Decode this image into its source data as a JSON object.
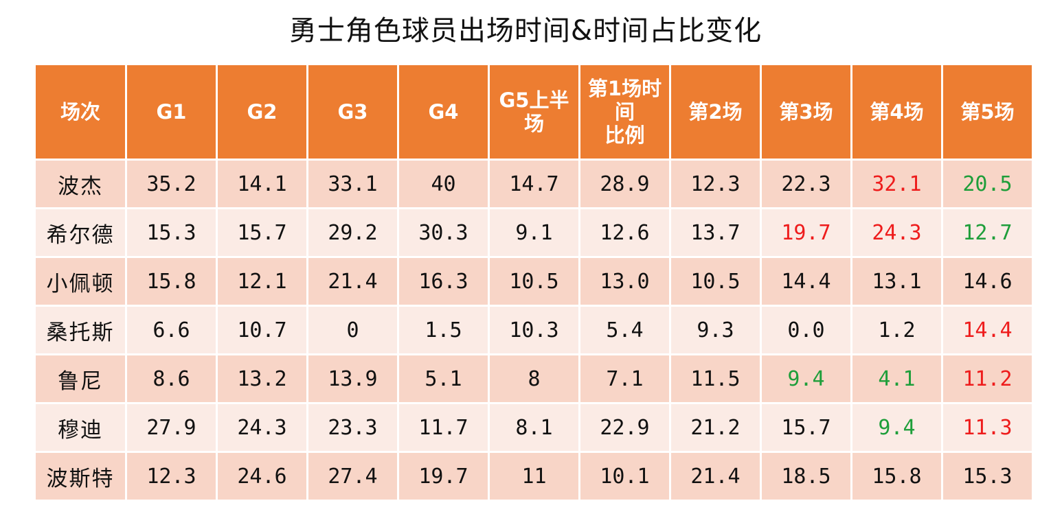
{
  "chart_data": {
    "type": "table",
    "title": "勇士角色球员出场时间&时间占比变化",
    "columns": [
      "场次",
      "G1",
      "G2",
      "G3",
      "G4",
      "G5上半\n场",
      "第1场时\n间\n比例",
      "第2场",
      "第3场",
      "第4场",
      "第5场"
    ],
    "rows": [
      {
        "name": "波杰",
        "cells": [
          {
            "v": "35.2"
          },
          {
            "v": "14.1"
          },
          {
            "v": "33.1"
          },
          {
            "v": "40"
          },
          {
            "v": "14.7"
          },
          {
            "v": "28.9"
          },
          {
            "v": "12.3"
          },
          {
            "v": "22.3"
          },
          {
            "v": "32.1",
            "color": "red"
          },
          {
            "v": "20.5",
            "color": "green"
          }
        ]
      },
      {
        "name": "希尔德",
        "cells": [
          {
            "v": "15.3"
          },
          {
            "v": "15.7"
          },
          {
            "v": "29.2"
          },
          {
            "v": "30.3"
          },
          {
            "v": "9.1"
          },
          {
            "v": "12.6"
          },
          {
            "v": "13.7"
          },
          {
            "v": "19.7",
            "color": "red"
          },
          {
            "v": "24.3",
            "color": "red"
          },
          {
            "v": "12.7",
            "color": "green"
          }
        ]
      },
      {
        "name": "小佩顿",
        "cells": [
          {
            "v": "15.8"
          },
          {
            "v": "12.1"
          },
          {
            "v": "21.4"
          },
          {
            "v": "16.3"
          },
          {
            "v": "10.5"
          },
          {
            "v": "13.0"
          },
          {
            "v": "10.5"
          },
          {
            "v": "14.4"
          },
          {
            "v": "13.1"
          },
          {
            "v": "14.6"
          }
        ]
      },
      {
        "name": "桑托斯",
        "cells": [
          {
            "v": "6.6"
          },
          {
            "v": "10.7"
          },
          {
            "v": "0"
          },
          {
            "v": "1.5"
          },
          {
            "v": "10.3"
          },
          {
            "v": "5.4"
          },
          {
            "v": "9.3"
          },
          {
            "v": "0.0"
          },
          {
            "v": "1.2"
          },
          {
            "v": "14.4",
            "color": "red"
          }
        ]
      },
      {
        "name": "鲁尼",
        "cells": [
          {
            "v": "8.6"
          },
          {
            "v": "13.2"
          },
          {
            "v": "13.9"
          },
          {
            "v": "5.1"
          },
          {
            "v": "8"
          },
          {
            "v": "7.1"
          },
          {
            "v": "11.5"
          },
          {
            "v": "9.4",
            "color": "green"
          },
          {
            "v": "4.1",
            "color": "green"
          },
          {
            "v": "11.2",
            "color": "red"
          }
        ]
      },
      {
        "name": "穆迪",
        "cells": [
          {
            "v": "27.9"
          },
          {
            "v": "24.3"
          },
          {
            "v": "23.3"
          },
          {
            "v": "11.7"
          },
          {
            "v": "8.1"
          },
          {
            "v": "22.9"
          },
          {
            "v": "21.2"
          },
          {
            "v": "15.7"
          },
          {
            "v": "9.4",
            "color": "green"
          },
          {
            "v": "11.3",
            "color": "red"
          }
        ]
      },
      {
        "name": "波斯特",
        "cells": [
          {
            "v": "12.3"
          },
          {
            "v": "24.6"
          },
          {
            "v": "27.4"
          },
          {
            "v": "19.7"
          },
          {
            "v": "11"
          },
          {
            "v": "10.1"
          },
          {
            "v": "21.4"
          },
          {
            "v": "18.5"
          },
          {
            "v": "15.8"
          },
          {
            "v": "15.3"
          }
        ]
      }
    ]
  },
  "colors": {
    "header_bg": "#ED7D31",
    "row_dark": "#F8D5C7",
    "row_light": "#FBEBE5",
    "red": "#EE1C1C",
    "green": "#1E9E3A"
  }
}
